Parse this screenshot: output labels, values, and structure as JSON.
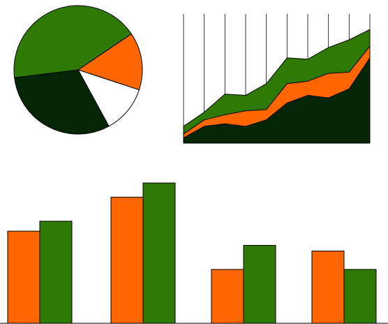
{
  "colors": {
    "green": "#2f7a04",
    "orange": "#ff6600",
    "dark_green": "#052606",
    "white": "#ffffff",
    "outline": "#000000",
    "grid": "#000000"
  },
  "chart_data": [
    {
      "type": "pie",
      "slices": [
        {
          "value": 14.5,
          "color": "#ff6600"
        },
        {
          "value": 12.0,
          "color": "#ffffff"
        },
        {
          "value": 31.0,
          "color": "#052606"
        },
        {
          "value": 42.5,
          "color": "#2f7a04"
        }
      ],
      "start_angle_deg": -34,
      "direction": "clockwise"
    },
    {
      "type": "area",
      "stacked": true,
      "x": [
        0,
        1,
        2,
        3,
        4,
        5,
        6,
        7,
        8,
        9
      ],
      "ylim": [
        0,
        100
      ],
      "grid": "vertical",
      "series": [
        {
          "color": "#052606",
          "values": [
            4,
            13,
            15,
            13,
            18,
            31,
            37,
            35,
            42,
            66
          ]
        },
        {
          "color": "#ff6600",
          "values": [
            3,
            5,
            7,
            12,
            8,
            15,
            11,
            19,
            13,
            9
          ]
        },
        {
          "color": "#2f7a04",
          "values": [
            6,
            6,
            16,
            12,
            20,
            20,
            17,
            20,
            25,
            13
          ]
        }
      ]
    },
    {
      "type": "bar",
      "categories": [
        "1",
        "2",
        "3",
        "4"
      ],
      "ylim": [
        0,
        100
      ],
      "series": [
        {
          "color": "#ff6600",
          "values": [
            65,
            89,
            38,
            51
          ]
        },
        {
          "color": "#2f7a04",
          "values": [
            72,
            99,
            55,
            38
          ]
        }
      ]
    }
  ]
}
